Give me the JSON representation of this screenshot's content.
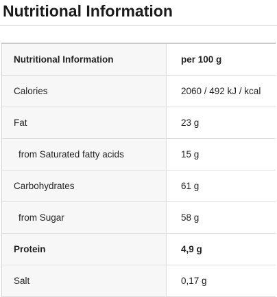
{
  "page": {
    "title": "Nutritional Information"
  },
  "table": {
    "header": {
      "name": "Nutritional Information",
      "value": "per 100 g"
    },
    "rows": [
      {
        "name": "Calories",
        "value": "2060 / 492 kJ / kcal"
      },
      {
        "name": "Fat",
        "value": "23 g"
      },
      {
        "name": "from Saturated fatty acids",
        "value": "15 g"
      },
      {
        "name": "Carbohydrates",
        "value": "61 g"
      },
      {
        "name": "from Sugar",
        "value": "58 g"
      },
      {
        "name": "Protein",
        "value": "4,9 g"
      },
      {
        "name": "Salt",
        "value": "0,17 g"
      }
    ]
  }
}
